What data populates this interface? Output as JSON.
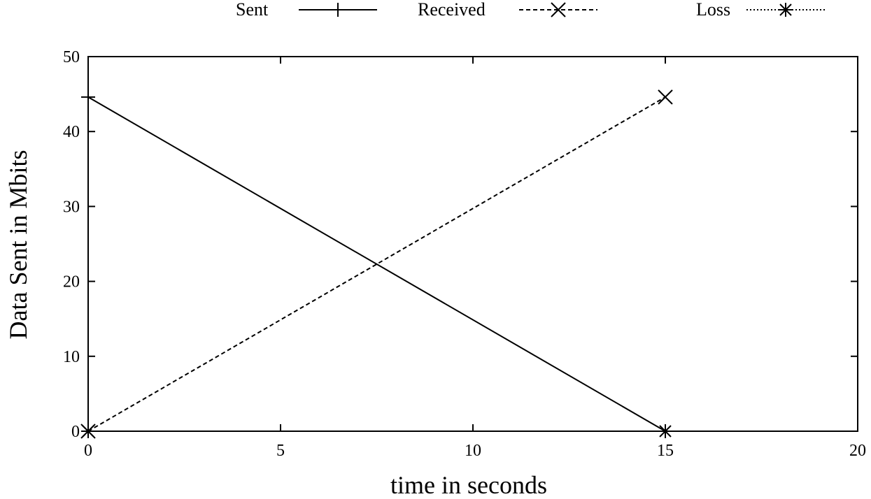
{
  "chart_data": {
    "type": "line",
    "title": "",
    "xlabel": "time in seconds",
    "ylabel": "Data Sent in Mbits",
    "xlim": [
      0,
      20
    ],
    "ylim": [
      0,
      50
    ],
    "xticks": [
      0,
      5,
      10,
      15,
      20
    ],
    "yticks": [
      0,
      10,
      20,
      30,
      40,
      50
    ],
    "grid": false,
    "legend_position": "top",
    "series": [
      {
        "name": "Sent",
        "marker": "plus",
        "dash": "solid",
        "x": [
          0,
          15
        ],
        "y": [
          44.6,
          0
        ]
      },
      {
        "name": "Received",
        "marker": "cross",
        "dash": "dashed",
        "x": [
          0,
          15
        ],
        "y": [
          0,
          44.6
        ]
      },
      {
        "name": "Loss",
        "marker": "star",
        "dash": "dotted",
        "x": [
          0,
          15
        ],
        "y": [
          0,
          0
        ]
      }
    ]
  }
}
